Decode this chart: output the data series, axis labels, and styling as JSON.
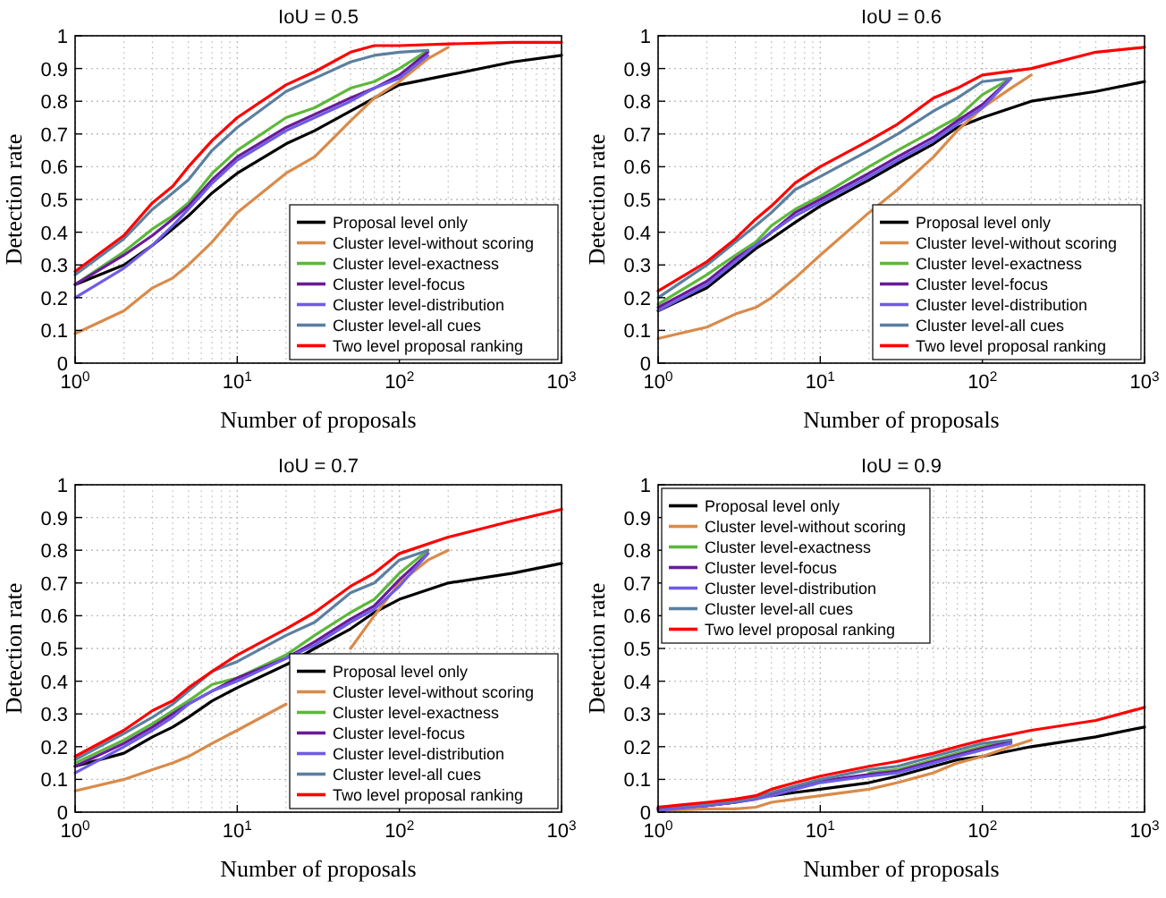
{
  "chart_data": [
    {
      "type": "line",
      "title": "IoU = 0.5",
      "xlabel": "Number of proposals",
      "ylabel": "Detection rate",
      "log": "x",
      "grid": true,
      "legend": "bottom right",
      "xlim": [
        1,
        1000
      ],
      "xticks": [
        {
          "value": 1,
          "label": "10$^{0}$"
        },
        {
          "value": 10,
          "label": "10$^{1}$"
        },
        {
          "value": 100,
          "label": "10$^{2}$"
        },
        {
          "value": 1000,
          "label": "10$^{3}$"
        }
      ],
      "ylim": [
        0,
        1
      ],
      "yticks": [
        0,
        0.1,
        0.2,
        0.3,
        0.4,
        0.5,
        0.6,
        0.7,
        0.8,
        0.9,
        1
      ],
      "series": [
        {
          "name": "Proposal level only",
          "color": "#000000",
          "x": [
            1,
            2,
            3,
            4,
            5,
            7,
            10,
            20,
            30,
            50,
            70,
            100,
            200,
            500,
            1000
          ],
          "values": [
            0.24,
            0.3,
            0.36,
            0.41,
            0.45,
            0.52,
            0.58,
            0.67,
            0.71,
            0.77,
            0.81,
            0.85,
            0.88,
            0.92,
            0.94
          ]
        },
        {
          "name": "Cluster level-without scoring",
          "color": "#d98b4a",
          "x": [
            1,
            2,
            3,
            4,
            5,
            7,
            10,
            20,
            30,
            50,
            70,
            100,
            150,
            200
          ],
          "values": [
            0.09,
            0.16,
            0.23,
            0.26,
            0.3,
            0.37,
            0.46,
            0.58,
            0.63,
            0.74,
            0.81,
            0.86,
            0.93,
            0.965
          ]
        },
        {
          "name": "Cluster level-exactness",
          "color": "#5cb83a",
          "x": [
            1,
            2,
            3,
            4,
            5,
            7,
            10,
            20,
            30,
            50,
            70,
            100,
            150
          ],
          "values": [
            0.24,
            0.34,
            0.41,
            0.45,
            0.49,
            0.58,
            0.65,
            0.75,
            0.78,
            0.84,
            0.86,
            0.9,
            0.955
          ]
        },
        {
          "name": "Cluster level-focus",
          "color": "#6a1b9a",
          "x": [
            1,
            2,
            3,
            4,
            5,
            7,
            10,
            20,
            30,
            50,
            70,
            100,
            150
          ],
          "values": [
            0.24,
            0.33,
            0.39,
            0.44,
            0.48,
            0.56,
            0.63,
            0.72,
            0.76,
            0.81,
            0.84,
            0.88,
            0.95
          ]
        },
        {
          "name": "Cluster level-distribution",
          "color": "#6f5ce6",
          "x": [
            1,
            2,
            3,
            4,
            5,
            7,
            10,
            20,
            30,
            50,
            70,
            100,
            150
          ],
          "values": [
            0.2,
            0.29,
            0.36,
            0.42,
            0.47,
            0.55,
            0.62,
            0.71,
            0.75,
            0.8,
            0.84,
            0.87,
            0.94
          ]
        },
        {
          "name": "Cluster level-all cues",
          "color": "#5b7fa0",
          "x": [
            1,
            2,
            3,
            4,
            5,
            7,
            10,
            20,
            30,
            50,
            70,
            100,
            150
          ],
          "values": [
            0.27,
            0.38,
            0.47,
            0.52,
            0.56,
            0.65,
            0.72,
            0.83,
            0.87,
            0.92,
            0.94,
            0.95,
            0.955
          ]
        },
        {
          "name": "Two level proposal ranking",
          "color": "#ff0000",
          "x": [
            1,
            2,
            3,
            4,
            5,
            7,
            10,
            20,
            30,
            50,
            70,
            100,
            200,
            500,
            1000
          ],
          "values": [
            0.28,
            0.39,
            0.49,
            0.54,
            0.6,
            0.68,
            0.75,
            0.85,
            0.89,
            0.95,
            0.97,
            0.97,
            0.975,
            0.98,
            0.98
          ]
        }
      ]
    },
    {
      "type": "line",
      "title": "IoU = 0.6",
      "xlabel": "Number of proposals",
      "ylabel": "Detection rate",
      "log": "x",
      "grid": true,
      "legend": "bottom right",
      "xlim": [
        1,
        1000
      ],
      "xticks": [
        {
          "value": 1,
          "label": "10$^{0}$"
        },
        {
          "value": 10,
          "label": "10$^{1}$"
        },
        {
          "value": 100,
          "label": "10$^{2}$"
        },
        {
          "value": 1000,
          "label": "10$^{3}$"
        }
      ],
      "ylim": [
        0,
        1
      ],
      "yticks": [
        0,
        0.1,
        0.2,
        0.3,
        0.4,
        0.5,
        0.6,
        0.7,
        0.8,
        0.9,
        1
      ],
      "series": [
        {
          "name": "Proposal level only",
          "color": "#000000",
          "x": [
            1,
            2,
            3,
            4,
            5,
            7,
            10,
            20,
            30,
            50,
            70,
            100,
            200,
            500,
            1000
          ],
          "values": [
            0.16,
            0.23,
            0.3,
            0.35,
            0.38,
            0.43,
            0.48,
            0.56,
            0.61,
            0.67,
            0.72,
            0.75,
            0.8,
            0.83,
            0.86
          ]
        },
        {
          "name": "Cluster level-without scoring",
          "color": "#d98b4a",
          "x": [
            1,
            2,
            3,
            4,
            5,
            7,
            10,
            20,
            30,
            50,
            70,
            100,
            150,
            200
          ],
          "values": [
            0.075,
            0.11,
            0.15,
            0.17,
            0.2,
            0.26,
            0.33,
            0.46,
            0.53,
            0.63,
            0.71,
            0.78,
            0.84,
            0.88
          ]
        },
        {
          "name": "Cluster level-exactness",
          "color": "#5cb83a",
          "x": [
            1,
            2,
            3,
            4,
            5,
            7,
            10,
            20,
            30,
            50,
            70,
            100,
            150
          ],
          "values": [
            0.18,
            0.27,
            0.33,
            0.37,
            0.42,
            0.47,
            0.51,
            0.6,
            0.65,
            0.71,
            0.75,
            0.82,
            0.87
          ]
        },
        {
          "name": "Cluster level-focus",
          "color": "#6a1b9a",
          "x": [
            1,
            2,
            3,
            4,
            5,
            7,
            10,
            20,
            30,
            50,
            70,
            100,
            150
          ],
          "values": [
            0.17,
            0.25,
            0.32,
            0.36,
            0.4,
            0.46,
            0.5,
            0.58,
            0.63,
            0.69,
            0.74,
            0.79,
            0.87
          ]
        },
        {
          "name": "Cluster level-distribution",
          "color": "#6f5ce6",
          "x": [
            1,
            2,
            3,
            4,
            5,
            7,
            10,
            20,
            30,
            50,
            70,
            100,
            150
          ],
          "values": [
            0.16,
            0.24,
            0.31,
            0.36,
            0.4,
            0.45,
            0.49,
            0.57,
            0.62,
            0.68,
            0.73,
            0.78,
            0.87
          ]
        },
        {
          "name": "Cluster level-all cues",
          "color": "#5b7fa0",
          "x": [
            1,
            2,
            3,
            4,
            5,
            7,
            10,
            20,
            30,
            50,
            70,
            100,
            150
          ],
          "values": [
            0.2,
            0.3,
            0.37,
            0.42,
            0.46,
            0.53,
            0.57,
            0.65,
            0.7,
            0.77,
            0.81,
            0.86,
            0.87
          ]
        },
        {
          "name": "Two level proposal ranking",
          "color": "#ff0000",
          "x": [
            1,
            2,
            3,
            4,
            5,
            7,
            10,
            20,
            30,
            50,
            70,
            100,
            200,
            500,
            1000
          ],
          "values": [
            0.22,
            0.31,
            0.38,
            0.44,
            0.48,
            0.55,
            0.6,
            0.68,
            0.73,
            0.81,
            0.84,
            0.88,
            0.9,
            0.95,
            0.965
          ]
        }
      ]
    },
    {
      "type": "line",
      "title": "IoU = 0.7",
      "xlabel": "Number of proposals",
      "ylabel": "Detection rate",
      "log": "x",
      "grid": true,
      "legend": "bottom right",
      "xlim": [
        1,
        1000
      ],
      "xticks": [
        {
          "value": 1,
          "label": "10$^{0}$"
        },
        {
          "value": 10,
          "label": "10$^{1}$"
        },
        {
          "value": 100,
          "label": "10$^{2}$"
        },
        {
          "value": 1000,
          "label": "10$^{3}$"
        }
      ],
      "ylim": [
        0,
        1
      ],
      "yticks": [
        0,
        0.1,
        0.2,
        0.3,
        0.4,
        0.5,
        0.6,
        0.7,
        0.8,
        0.9,
        1
      ],
      "series": [
        {
          "name": "Proposal level only",
          "color": "#000000",
          "x": [
            1,
            2,
            3,
            4,
            5,
            7,
            10,
            20,
            30,
            50,
            70,
            100,
            200,
            500,
            1000
          ],
          "values": [
            0.14,
            0.18,
            0.23,
            0.26,
            0.29,
            0.34,
            0.38,
            0.45,
            0.5,
            0.56,
            0.61,
            0.65,
            0.7,
            0.73,
            0.76
          ]
        },
        {
          "name": "Cluster level-without scoring",
          "color": "#d98b4a",
          "x": [
            1,
            2,
            3,
            4,
            5,
            7,
            10,
            20,
            30,
            50,
            70,
            100,
            150,
            200
          ],
          "values": [
            0.065,
            0.1,
            0.13,
            0.15,
            0.17,
            0.21,
            0.25,
            0.33,
            null,
            0.5,
            0.6,
            0.7,
            0.77,
            0.8
          ]
        },
        {
          "name": "Cluster level-exactness",
          "color": "#5cb83a",
          "x": [
            1,
            2,
            3,
            4,
            5,
            7,
            10,
            20,
            30,
            50,
            70,
            100,
            150
          ],
          "values": [
            0.15,
            0.22,
            0.27,
            0.31,
            0.34,
            0.39,
            0.41,
            0.48,
            0.54,
            0.61,
            0.65,
            0.73,
            0.8
          ]
        },
        {
          "name": "Cluster level-focus",
          "color": "#6a1b9a",
          "x": [
            1,
            2,
            3,
            4,
            5,
            7,
            10,
            20,
            30,
            50,
            70,
            100,
            150
          ],
          "values": [
            0.14,
            0.21,
            0.26,
            0.3,
            0.33,
            0.37,
            0.41,
            0.47,
            0.52,
            0.59,
            0.63,
            0.71,
            0.79
          ]
        },
        {
          "name": "Cluster level-distribution",
          "color": "#6f5ce6",
          "x": [
            1,
            2,
            3,
            4,
            5,
            7,
            10,
            20,
            30,
            50,
            70,
            100,
            150
          ],
          "values": [
            0.12,
            0.2,
            0.25,
            0.29,
            0.33,
            0.37,
            0.4,
            0.47,
            0.51,
            0.58,
            0.62,
            0.69,
            0.79
          ]
        },
        {
          "name": "Cluster level-all cues",
          "color": "#5b7fa0",
          "x": [
            1,
            2,
            3,
            4,
            5,
            7,
            10,
            20,
            30,
            50,
            70,
            100,
            150
          ],
          "values": [
            0.16,
            0.24,
            0.29,
            0.33,
            0.37,
            0.43,
            0.46,
            0.54,
            0.58,
            0.67,
            0.7,
            0.77,
            0.8
          ]
        },
        {
          "name": "Two level proposal ranking",
          "color": "#ff0000",
          "x": [
            1,
            2,
            3,
            4,
            5,
            7,
            10,
            20,
            30,
            50,
            70,
            100,
            200,
            500,
            1000
          ],
          "values": [
            0.17,
            0.25,
            0.31,
            0.34,
            0.38,
            0.43,
            0.48,
            0.56,
            0.61,
            0.69,
            0.73,
            0.79,
            0.84,
            0.89,
            0.925
          ]
        }
      ]
    },
    {
      "type": "line",
      "title": "IoU = 0.9",
      "xlabel": "Number of proposals",
      "ylabel": "Detection rate",
      "log": "x",
      "grid": true,
      "legend": "top left",
      "xlim": [
        1,
        1000
      ],
      "xticks": [
        {
          "value": 1,
          "label": "10$^{0}$"
        },
        {
          "value": 10,
          "label": "10$^{1}$"
        },
        {
          "value": 100,
          "label": "10$^{2}$"
        },
        {
          "value": 1000,
          "label": "10$^{3}$"
        }
      ],
      "ylim": [
        0,
        1
      ],
      "yticks": [
        0,
        0.1,
        0.2,
        0.3,
        0.4,
        0.5,
        0.6,
        0.7,
        0.8,
        0.9,
        1
      ],
      "series": [
        {
          "name": "Proposal level only",
          "color": "#000000",
          "x": [
            1,
            2,
            3,
            4,
            5,
            7,
            10,
            20,
            30,
            50,
            70,
            100,
            200,
            500,
            1000
          ],
          "values": [
            0.01,
            0.02,
            0.03,
            null,
            0.05,
            0.06,
            0.07,
            0.09,
            0.11,
            0.14,
            0.16,
            0.17,
            0.2,
            0.23,
            0.26
          ]
        },
        {
          "name": "Cluster level-without scoring",
          "color": "#d98b4a",
          "x": [
            1,
            2,
            3,
            4,
            5,
            7,
            10,
            20,
            30,
            50,
            70,
            100,
            150,
            200
          ],
          "values": [
            0.005,
            0.01,
            0.01,
            0.015,
            0.03,
            0.04,
            0.05,
            0.07,
            0.09,
            0.12,
            0.15,
            0.17,
            0.2,
            0.22
          ]
        },
        {
          "name": "Cluster level-exactness",
          "color": "#5cb83a",
          "x": [
            20,
            30,
            50,
            70,
            100,
            150
          ],
          "values": [
            0.12,
            0.13,
            0.16,
            0.18,
            0.2,
            0.22
          ]
        },
        {
          "name": "Cluster level-focus",
          "color": "#6a1b9a",
          "x": [
            1,
            2,
            3,
            4,
            5,
            7,
            10,
            20,
            30,
            50,
            70,
            100,
            150
          ],
          "values": [
            0.01,
            0.02,
            0.03,
            0.04,
            0.055,
            0.075,
            0.095,
            0.115,
            0.125,
            0.155,
            0.175,
            0.195,
            0.215
          ]
        },
        {
          "name": "Cluster level-distribution",
          "color": "#6f5ce6",
          "x": [
            1,
            2,
            3,
            4,
            5,
            7,
            10,
            20,
            30,
            50,
            70,
            100,
            150
          ],
          "values": [
            0.005,
            0.02,
            0.03,
            0.04,
            0.05,
            0.07,
            0.09,
            0.11,
            0.12,
            0.15,
            0.17,
            0.19,
            0.21
          ]
        },
        {
          "name": "Cluster level-all cues",
          "color": "#5b7fa0",
          "x": [
            1,
            2,
            3,
            4,
            5,
            7,
            10,
            20,
            30,
            50,
            70,
            100,
            150
          ],
          "values": [
            0.015,
            0.025,
            0.035,
            0.045,
            0.06,
            0.08,
            0.1,
            0.13,
            0.14,
            0.17,
            0.19,
            0.21,
            0.22
          ]
        },
        {
          "name": "Two level proposal ranking",
          "color": "#ff0000",
          "x": [
            1,
            2,
            3,
            4,
            5,
            7,
            10,
            20,
            30,
            50,
            70,
            100,
            200,
            500,
            1000
          ],
          "values": [
            0.015,
            0.03,
            0.04,
            0.05,
            0.07,
            0.09,
            0.11,
            0.14,
            0.155,
            0.18,
            0.2,
            0.22,
            0.25,
            0.28,
            0.32
          ]
        }
      ]
    }
  ]
}
